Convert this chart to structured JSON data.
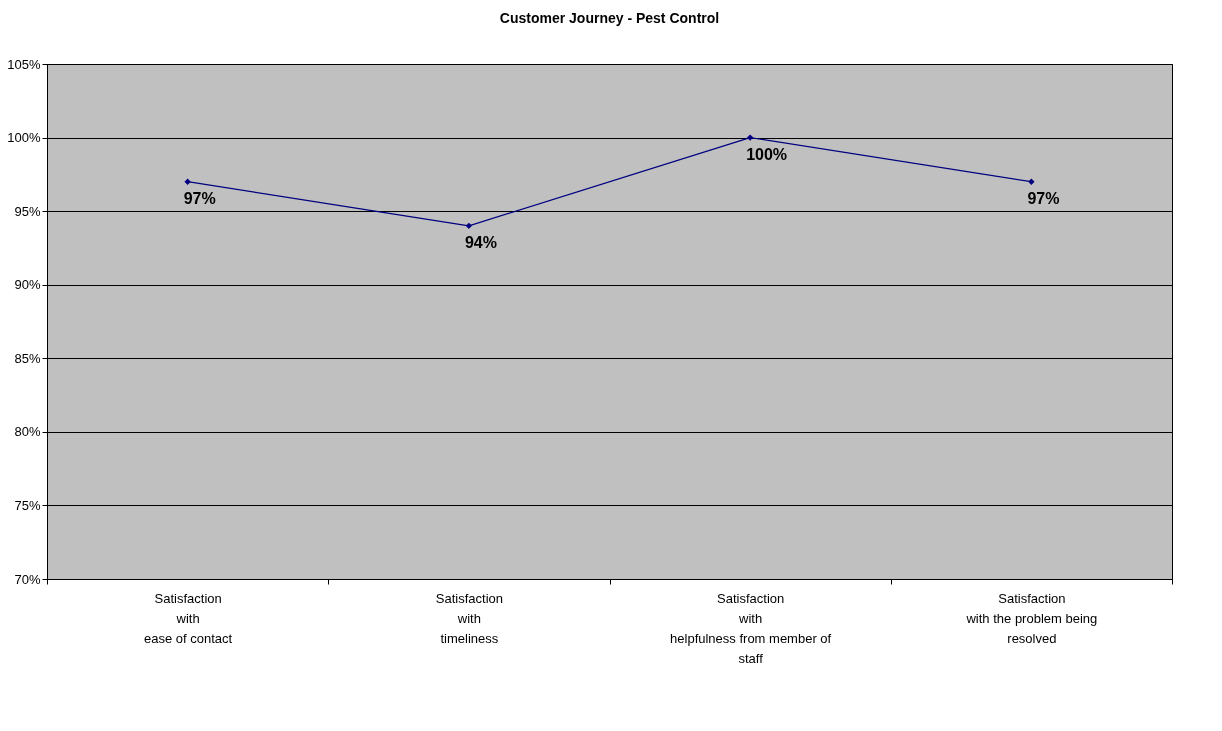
{
  "chart_data": {
    "type": "line",
    "title": "Customer Journey - Pest Control",
    "categories": [
      "Satisfaction\nwith\nease of contact",
      "Satisfaction\nwith\ntimeliness",
      "Satisfaction\nwith\nhelpfulness from member of\nstaff",
      "Satisfaction\nwith the problem being\nresolved"
    ],
    "series": [
      {
        "color": "#000080",
        "values": [
          97,
          94,
          100,
          97
        ],
        "value_labels": [
          "97%",
          "94%",
          "100%",
          "97%"
        ]
      }
    ],
    "ylim": [
      70,
      105
    ],
    "yticks": [
      {
        "value": 70,
        "label": "70%"
      },
      {
        "value": 75,
        "label": "75%"
      },
      {
        "value": 80,
        "label": "80%"
      },
      {
        "value": 85,
        "label": "85%"
      },
      {
        "value": 90,
        "label": "90%"
      },
      {
        "value": 95,
        "label": "95%"
      },
      {
        "value": 100,
        "label": "100%"
      },
      {
        "value": 105,
        "label": "105%"
      }
    ],
    "grid": "y",
    "legend": false,
    "marker": "diamond",
    "line_style": "solid"
  }
}
